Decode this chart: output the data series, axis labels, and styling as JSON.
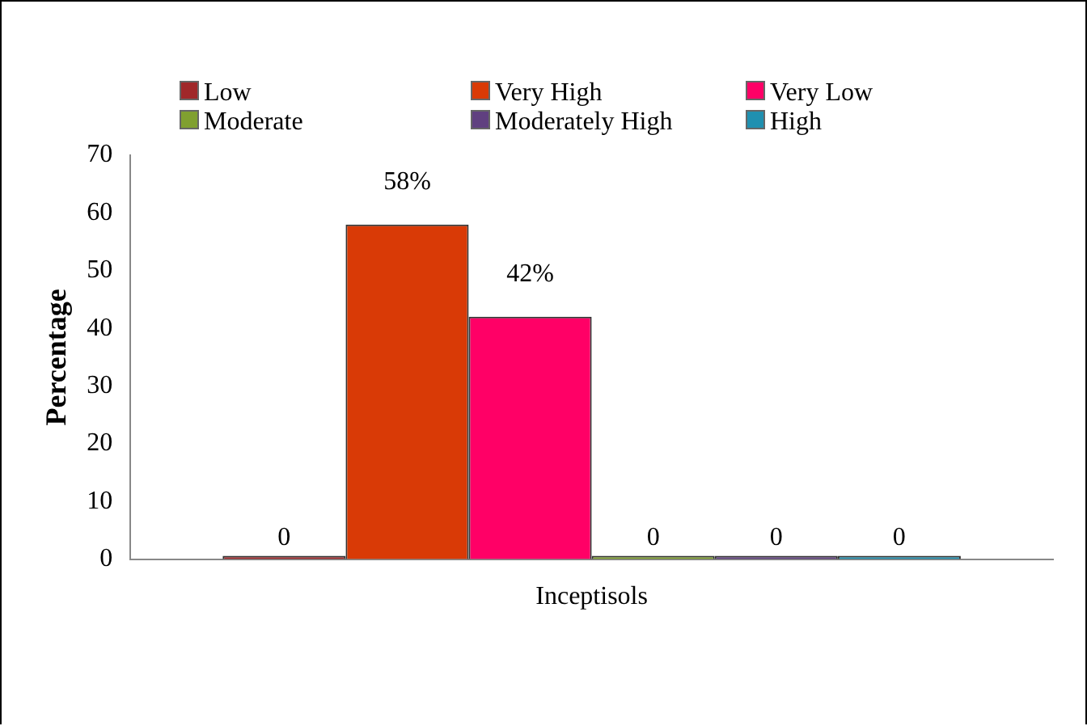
{
  "chart_data": {
    "type": "bar",
    "categories": [
      "Inceptisols"
    ],
    "ylabel": "Percentage",
    "series": [
      {
        "name": "Low",
        "color": "#a0282a",
        "values": [
          0
        ],
        "value_labels": [
          "0"
        ]
      },
      {
        "name": "Very High",
        "color": "#d93a06",
        "values": [
          58
        ],
        "value_labels": [
          "58%"
        ]
      },
      {
        "name": "Very Low",
        "color": "#ff0066",
        "values": [
          42
        ],
        "value_labels": [
          "42%"
        ]
      },
      {
        "name": "Moderate",
        "color": "#80a030",
        "values": [
          0
        ],
        "value_labels": [
          "0"
        ]
      },
      {
        "name": "Moderately High",
        "color": "#604080",
        "values": [
          0
        ],
        "value_labels": [
          "0"
        ]
      },
      {
        "name": "High",
        "color": "#2090b0",
        "values": [
          0
        ],
        "value_labels": [
          "0"
        ]
      }
    ],
    "ylim": [
      0,
      70
    ],
    "yticks": [
      0,
      10,
      20,
      30,
      40,
      50,
      60,
      70
    ],
    "grid": false,
    "legend": "top"
  }
}
